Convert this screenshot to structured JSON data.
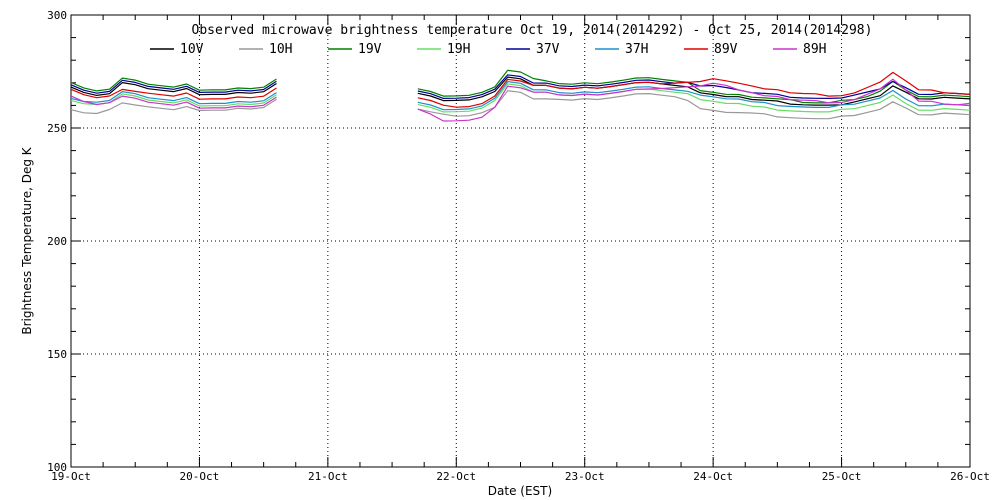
{
  "chart_data": {
    "type": "line",
    "title": "Observed microwave brightness temperature Oct 19, 2014(2014292) - Oct 25, 2014(2014298)",
    "xlabel": "Date (EST)",
    "ylabel": "Brightness Temperature, Deg K",
    "ylim": [
      100,
      300
    ],
    "yticks": [
      "100",
      "150",
      "200",
      "250",
      "300"
    ],
    "xlim": [
      0,
      7
    ],
    "xtick_labels": [
      "19-Oct",
      "20-Oct",
      "21-Oct",
      "22-Oct",
      "23-Oct",
      "24-Oct",
      "25-Oct",
      "26-Oct"
    ],
    "grid": true,
    "legend_position": "top",
    "x_days": [
      0.0,
      0.1,
      0.2,
      0.3,
      0.4,
      0.5,
      0.6,
      0.7,
      0.8,
      0.9,
      1.0,
      1.1,
      1.2,
      1.3,
      1.4,
      1.5,
      1.6,
      2.7,
      2.8,
      2.9,
      3.0,
      3.1,
      3.2,
      3.3,
      3.4,
      3.5,
      3.6,
      3.7,
      3.8,
      3.9,
      4.0,
      4.1,
      4.2,
      4.3,
      4.4,
      4.5,
      4.6,
      4.7,
      4.8,
      4.9,
      5.0,
      5.1,
      5.2,
      5.3,
      5.4,
      5.5,
      5.6,
      5.7,
      5.8,
      5.9,
      6.0,
      6.1,
      6.2,
      6.3,
      6.4,
      6.5,
      6.6,
      6.7,
      6.8,
      6.9,
      7.0
    ],
    "series": [
      {
        "name": "10V",
        "color": "#000000",
        "values": [
          268,
          266,
          265,
          266,
          271,
          270,
          268,
          267,
          266,
          267,
          264,
          264,
          264,
          265,
          265,
          266,
          270,
          266,
          265,
          263,
          263,
          263,
          264,
          266,
          272,
          271,
          268,
          268,
          267,
          267,
          268,
          268,
          269,
          270,
          271,
          271,
          270,
          269,
          268,
          265,
          264,
          263,
          263,
          262,
          262,
          262,
          261,
          261,
          261,
          261,
          261,
          262,
          263,
          264,
          268,
          265,
          262,
          262,
          263,
          263,
          263
        ]
      },
      {
        "name": "10H",
        "color": "#999999",
        "values": [
          258,
          257,
          257,
          259,
          262,
          261,
          260,
          259,
          258,
          259,
          257,
          257,
          257,
          258,
          258,
          259,
          263,
          259,
          258,
          257,
          256,
          256,
          257,
          259,
          266,
          265,
          262,
          262,
          262,
          262,
          263,
          263,
          264,
          265,
          266,
          266,
          265,
          264,
          262,
          258,
          257,
          256,
          256,
          256,
          256,
          255,
          255,
          255,
          255,
          255,
          256,
          256,
          257,
          258,
          261,
          258,
          255,
          255,
          256,
          256,
          256
        ]
      },
      {
        "name": "19V",
        "color": "#008000",
        "values": [
          270,
          268,
          267,
          268,
          273,
          272,
          270,
          269,
          268,
          269,
          266,
          266,
          266,
          267,
          267,
          268,
          272,
          268,
          267,
          265,
          265,
          265,
          266,
          268,
          275,
          274,
          271,
          270,
          269,
          269,
          270,
          270,
          271,
          272,
          273,
          273,
          272,
          271,
          270,
          266,
          265,
          264,
          264,
          263,
          263,
          263,
          263,
          262,
          262,
          262,
          263,
          263,
          264,
          266,
          270,
          266,
          263,
          263,
          264,
          264,
          264
        ]
      },
      {
        "name": "19H",
        "color": "#66dd66",
        "values": [
          262,
          261,
          261,
          262,
          266,
          265,
          263,
          262,
          261,
          262,
          259,
          259,
          259,
          260,
          260,
          261,
          265,
          261,
          260,
          258,
          258,
          258,
          259,
          262,
          269,
          268,
          265,
          265,
          264,
          264,
          265,
          265,
          266,
          267,
          268,
          268,
          267,
          266,
          265,
          262,
          261,
          260,
          260,
          259,
          259,
          258,
          258,
          258,
          258,
          258,
          259,
          259,
          260,
          261,
          264,
          260,
          257,
          257,
          258,
          258,
          258
        ]
      },
      {
        "name": "37V",
        "color": "#000099",
        "values": [
          269,
          267,
          266,
          267,
          272,
          271,
          269,
          268,
          267,
          268,
          265,
          265,
          265,
          266,
          266,
          267,
          271,
          267,
          266,
          264,
          264,
          264,
          265,
          267,
          273,
          272,
          269,
          269,
          268,
          268,
          269,
          269,
          270,
          271,
          272,
          272,
          271,
          270,
          270,
          268,
          268,
          267,
          266,
          265,
          265,
          265,
          264,
          264,
          264,
          264,
          264,
          265,
          266,
          267,
          270,
          267,
          264,
          264,
          265,
          265,
          265
        ]
      },
      {
        "name": "37H",
        "color": "#1e90c8",
        "values": [
          263,
          262,
          262,
          263,
          267,
          266,
          264,
          263,
          262,
          263,
          260,
          260,
          260,
          261,
          261,
          262,
          266,
          262,
          261,
          259,
          259,
          259,
          260,
          263,
          270,
          269,
          266,
          266,
          265,
          265,
          266,
          266,
          267,
          268,
          269,
          269,
          268,
          267,
          266,
          264,
          263,
          262,
          262,
          261,
          261,
          260,
          260,
          260,
          260,
          260,
          261,
          261,
          262,
          263,
          266,
          262,
          259,
          259,
          260,
          260,
          260
        ]
      },
      {
        "name": "89V",
        "color": "#dd0000",
        "values": [
          267,
          265,
          264,
          265,
          268,
          267,
          266,
          265,
          264,
          265,
          262,
          262,
          262,
          263,
          263,
          264,
          268,
          264,
          263,
          261,
          260,
          260,
          261,
          264,
          271,
          270,
          268,
          268,
          267,
          267,
          268,
          268,
          269,
          270,
          271,
          271,
          270,
          270,
          270,
          270,
          271,
          270,
          269,
          268,
          267,
          267,
          266,
          266,
          266,
          265,
          265,
          266,
          268,
          270,
          274,
          270,
          266,
          266,
          265,
          265,
          265
        ]
      },
      {
        "name": "89H",
        "color": "#cc33cc",
        "values": [
          264,
          262,
          261,
          262,
          265,
          264,
          262,
          261,
          260,
          261,
          258,
          258,
          258,
          259,
          259,
          260,
          264,
          259,
          257,
          254,
          254,
          254,
          255,
          259,
          268,
          267,
          265,
          265,
          264,
          264,
          265,
          265,
          266,
          267,
          268,
          268,
          268,
          268,
          268,
          268,
          269,
          268,
          266,
          265,
          264,
          264,
          263,
          263,
          263,
          262,
          262,
          263,
          265,
          267,
          271,
          266,
          261,
          261,
          260,
          260,
          261
        ]
      }
    ]
  }
}
